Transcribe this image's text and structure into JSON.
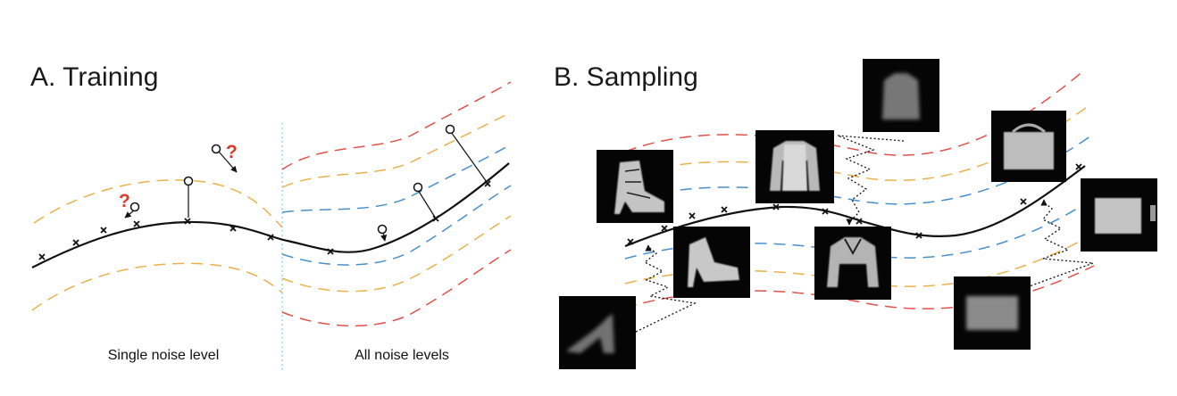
{
  "panels": [
    {
      "title": "A. Training",
      "captions": [
        "Single noise level",
        "All noise levels"
      ]
    },
    {
      "title": "B. Sampling"
    }
  ],
  "question_mark": "?",
  "colors": {
    "manifold": "#111111",
    "band_red": "#e0524a",
    "band_orange": "#eab14c",
    "band_blue": "#4a8fcc",
    "divider": "#7fd4dc",
    "question": "#d93a2b",
    "thumbnail_bg": "#050505"
  },
  "thumbnails": [
    "sweater",
    "sweater",
    "ankle-boot",
    "sandal",
    "shirt",
    "bag",
    "bag",
    "bag",
    "high-heel"
  ]
}
